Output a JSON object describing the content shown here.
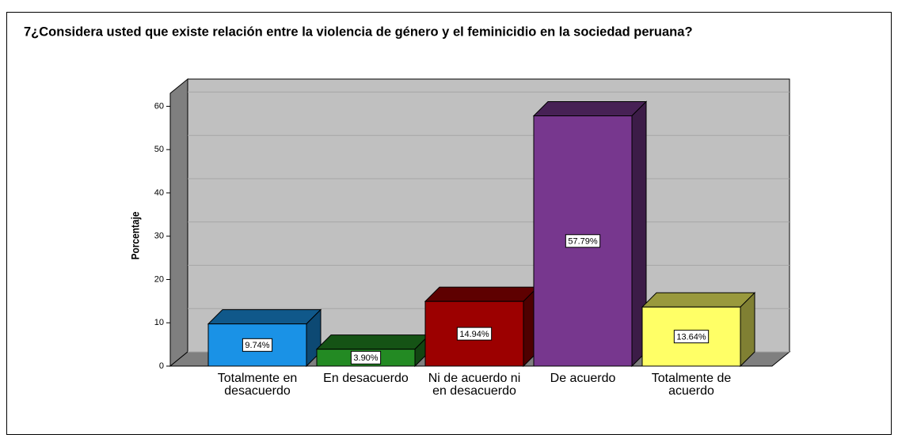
{
  "chart_data": {
    "type": "bar3d",
    "title": "7¿Considera usted que existe relación entre la violencia de género y el feminicidio en la sociedad peruana?",
    "y_label": "Porcentaje",
    "categories": [
      "Totalmente en desacuerdo",
      "En desacuerdo",
      "Ni de acuerdo ni en desacuerdo",
      "De acuerdo",
      "Totalmente de acuerdo"
    ],
    "values": [
      9.74,
      3.9,
      14.94,
      57.79,
      13.64
    ],
    "value_labels": [
      "9.74%",
      "3.90%",
      "14.94%",
      "57.79%",
      "13.64%"
    ],
    "colors": [
      "#1a92e6",
      "#238a23",
      "#9c0000",
      "#77378e",
      "#ffff66"
    ],
    "ylim": [
      0,
      63
    ],
    "yticks": [
      0,
      10,
      20,
      30,
      40,
      50,
      60
    ],
    "grid": true
  }
}
